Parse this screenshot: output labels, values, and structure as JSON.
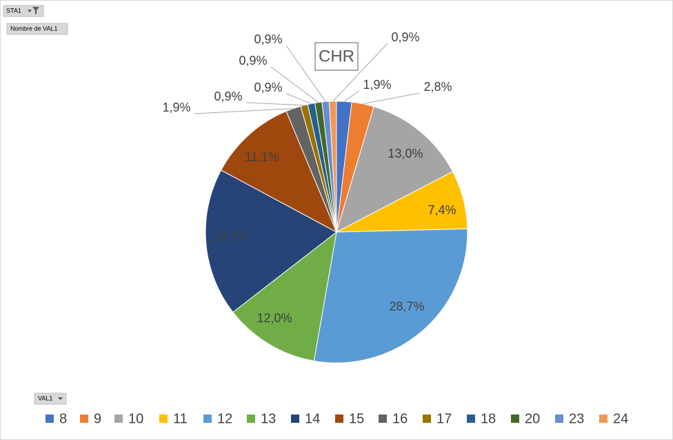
{
  "chart_data": {
    "type": "pie",
    "title": "CHR",
    "categories": [
      "8",
      "9",
      "10",
      "11",
      "12",
      "13",
      "14",
      "15",
      "16",
      "17",
      "18",
      "20",
      "23",
      "24"
    ],
    "values": [
      1.9,
      2.8,
      13.0,
      7.4,
      28.7,
      12.0,
      18.7,
      11.1,
      1.9,
      0.9,
      0.9,
      0.9,
      0.9,
      0.9
    ],
    "value_labels": [
      "1,9%",
      "2,8%",
      "13,0%",
      "7,4%",
      "28,7%",
      "12,0%",
      "18,7%",
      "11,1%",
      "1,9%",
      "0,9%",
      "0,9%",
      "0,9%",
      "0,9%",
      "0,9%"
    ],
    "colors": [
      "#4472c4",
      "#ed7d31",
      "#a5a5a5",
      "#ffc000",
      "#5b9bd5",
      "#70ad47",
      "#264478",
      "#9e480e",
      "#636363",
      "#997300",
      "#255e91",
      "#43682b",
      "#698ed0",
      "#f1975a"
    ],
    "legend": "bottom"
  },
  "pivot_buttons": {
    "filter": "STA1",
    "values": "Nombre de VAL1",
    "axis": "VAL1"
  }
}
